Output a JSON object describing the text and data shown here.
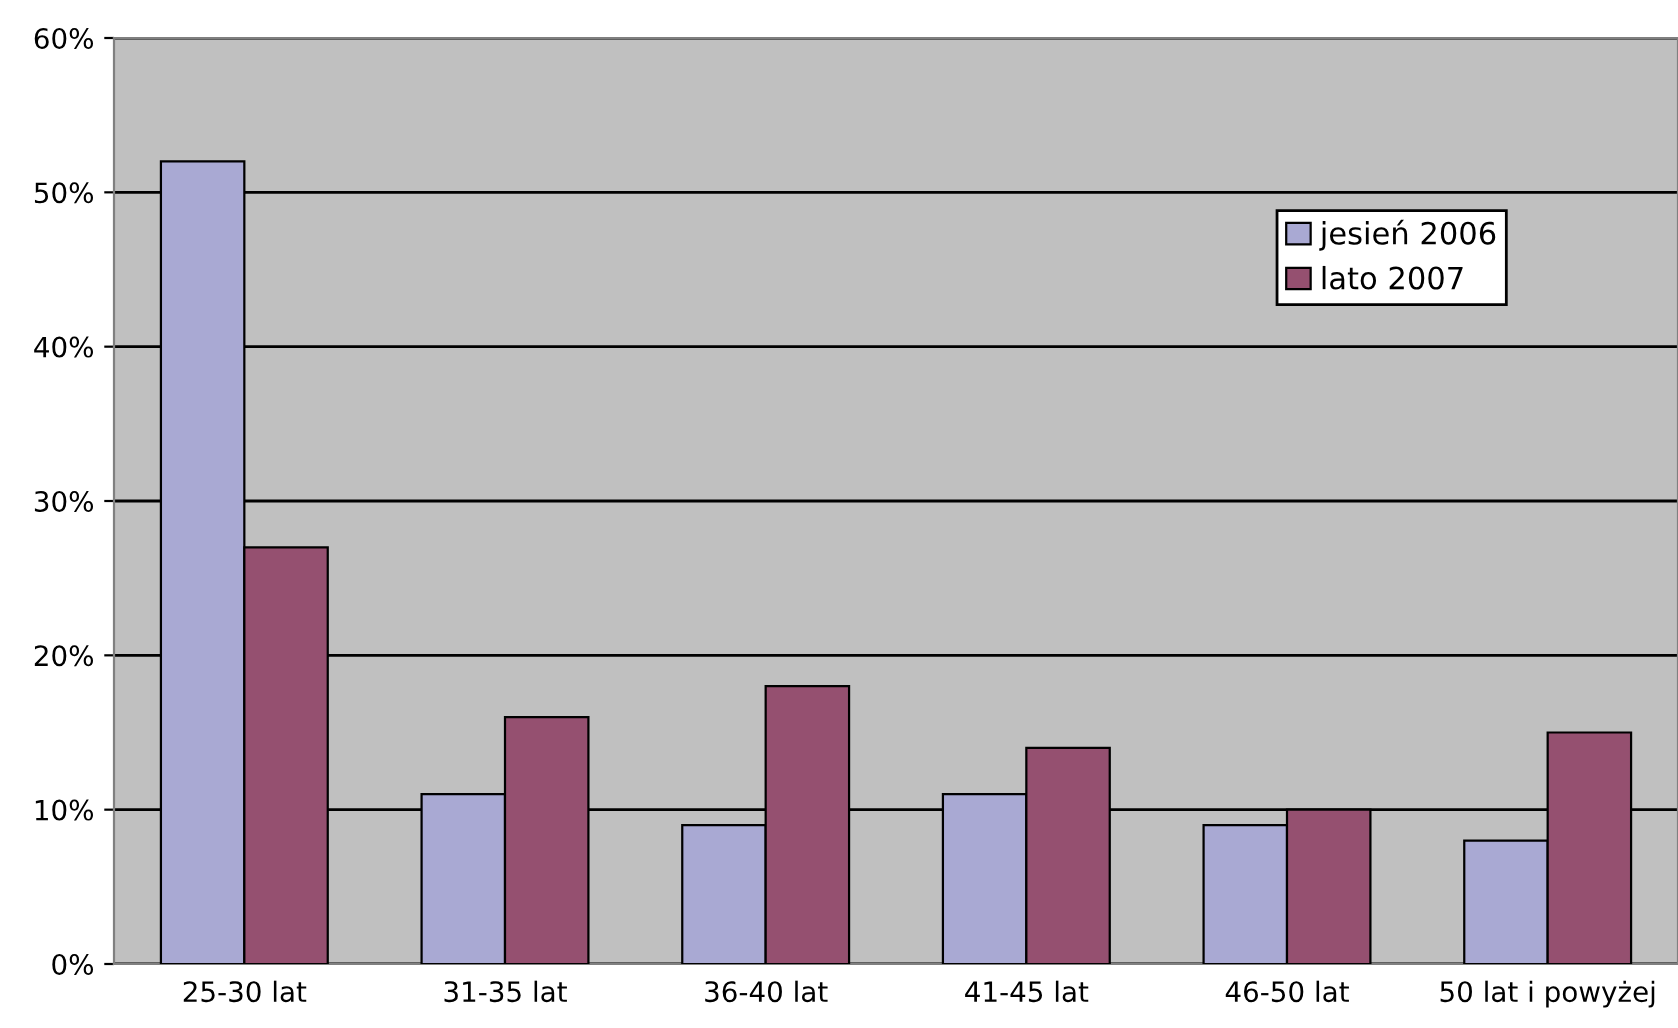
{
  "chart_data": {
    "type": "bar",
    "categories": [
      "25-30 lat",
      "31-35 lat",
      "36-40 lat",
      "41-45 lat",
      "46-50 lat",
      "50 lat i powyżej"
    ],
    "series": [
      {
        "name": "jesień 2006",
        "color": "#a9a9d3",
        "values": [
          52,
          11,
          9,
          11,
          9,
          8
        ]
      },
      {
        "name": "lato 2007",
        "color": "#955070",
        "values": [
          27,
          16,
          18,
          14,
          10,
          15
        ]
      }
    ],
    "ylim": [
      0,
      60
    ],
    "yticks": [
      {
        "value": 0,
        "label": "0%"
      },
      {
        "value": 10,
        "label": "10%"
      },
      {
        "value": 20,
        "label": "20%"
      },
      {
        "value": 30,
        "label": "30%"
      },
      {
        "value": 40,
        "label": "40%"
      },
      {
        "value": 50,
        "label": "50%"
      },
      {
        "value": 60,
        "label": "60%"
      }
    ],
    "grid": "y",
    "legend": "top right"
  }
}
